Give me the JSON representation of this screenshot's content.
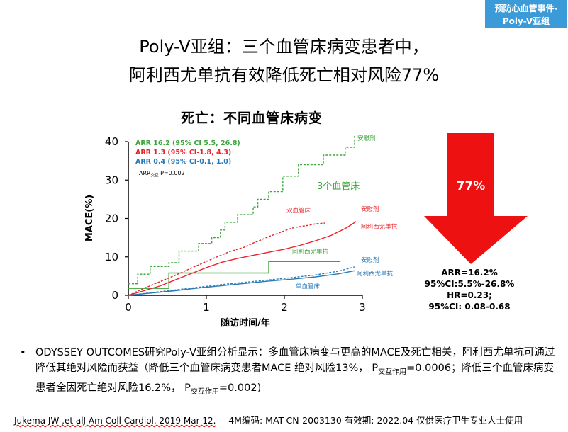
{
  "tag": {
    "line1": "预防心血管事件-",
    "line2": "Poly-V亚组"
  },
  "title": {
    "line1": "Poly-V亚组：三个血管床病变患者中，",
    "line2": "阿利西尤单抗有效降低死亡相对风险77%"
  },
  "chart_data": {
    "type": "line",
    "title": "死亡：不同血管床病变",
    "xlabel": "随访时间/年",
    "ylabel": "MACE(%)",
    "xlim": [
      0,
      3
    ],
    "ylim": [
      0,
      40
    ],
    "x_ticks": [
      "0",
      "1",
      "2",
      "3"
    ],
    "y_ticks": [
      "0",
      "10",
      "20",
      "30",
      "40"
    ],
    "legend": [
      {
        "text": "ARR 16.2 (95% CI 5.5, 26.8)",
        "color": "#3aa53a"
      },
      {
        "text": "ARR 1.3 (95% CI-1.8, 4.3)",
        "color": "#e8242a"
      },
      {
        "text": "ARR 0.4 (95% CI-0.1, 1.0)",
        "color": "#2a7ab8"
      }
    ],
    "interaction_note": {
      "prefix": "ARR",
      "sub": "交互",
      "suffix": " P=0.002"
    },
    "series": [
      {
        "name": "安慰剂",
        "group": "3个血管床",
        "color": "#3aa53a",
        "dash": true,
        "x": [
          0,
          0.12,
          0.12,
          0.28,
          0.28,
          0.52,
          0.52,
          0.65,
          0.65,
          0.9,
          0.9,
          1.07,
          1.07,
          1.18,
          1.18,
          1.24,
          1.24,
          1.4,
          1.4,
          1.6,
          1.6,
          1.66,
          1.66,
          1.8,
          1.8,
          1.98,
          1.98,
          2.18,
          2.18,
          2.5,
          2.5,
          2.78,
          2.78,
          2.9,
          2.9
        ],
        "y": [
          3,
          3,
          5.5,
          5.5,
          7.5,
          7.5,
          8.5,
          8.5,
          11.5,
          11.5,
          13.5,
          13.5,
          15,
          15,
          17,
          17,
          19,
          19,
          21,
          21,
          23,
          23,
          25,
          25,
          27,
          27,
          31,
          31,
          34,
          34,
          36.5,
          36.5,
          38.5,
          38.5,
          41.5
        ]
      },
      {
        "name": "阿利西尤单抗",
        "group": "3个血管床",
        "color": "#3aa53a",
        "dash": false,
        "x": [
          0,
          0.52,
          0.52,
          1.8,
          1.8,
          2.72
        ],
        "y": [
          1.8,
          1.8,
          5.8,
          5.8,
          8.8,
          8.8
        ]
      },
      {
        "name": "安慰剂",
        "group": "双血管床",
        "color": "#e8242a",
        "dash": true,
        "x": [
          0,
          0.2,
          0.4,
          0.6,
          0.8,
          1.0,
          1.1,
          1.2,
          1.3,
          1.4,
          1.5,
          1.6,
          1.7,
          1.8,
          1.9,
          2.0,
          2.1,
          2.2,
          2.3,
          2.4,
          2.52
        ],
        "y": [
          0,
          1.8,
          3.5,
          5.2,
          7.0,
          8.8,
          9.7,
          10.5,
          11.4,
          12.0,
          12.6,
          13.6,
          14.4,
          15.3,
          16.0,
          16.8,
          17.5,
          17.9,
          18.2,
          18.6,
          18.8
        ]
      },
      {
        "name": "阿利西尤单抗",
        "group": "双血管床",
        "color": "#e8242a",
        "dash": false,
        "x": [
          0,
          0.2,
          0.4,
          0.6,
          0.8,
          1.0,
          1.2,
          1.4,
          1.6,
          1.8,
          2.0,
          2.2,
          2.4,
          2.6,
          2.8,
          2.92
        ],
        "y": [
          0,
          1.2,
          2.4,
          4.0,
          5.6,
          7.2,
          8.6,
          9.6,
          10.4,
          11.2,
          12.0,
          13.0,
          14.2,
          15.6,
          17.6,
          19.2
        ]
      },
      {
        "name": "安慰剂",
        "group": "单血管床",
        "color": "#2a7ab8",
        "dash": true,
        "x": [
          0,
          0.3,
          0.6,
          0.9,
          1.2,
          1.5,
          1.8,
          2.1,
          2.4,
          2.7,
          2.9
        ],
        "y": [
          0,
          0.7,
          1.4,
          2.1,
          2.8,
          3.4,
          4.0,
          4.6,
          5.3,
          6.3,
          7.4
        ]
      },
      {
        "name": "阿利西尤单抗",
        "group": "单血管床",
        "color": "#2a7ab8",
        "dash": false,
        "x": [
          0,
          0.3,
          0.6,
          0.9,
          1.2,
          1.5,
          1.8,
          2.1,
          2.4,
          2.7,
          2.9
        ],
        "y": [
          0,
          0.6,
          1.2,
          1.9,
          2.5,
          3.1,
          3.7,
          4.2,
          4.8,
          5.6,
          6.4
        ]
      }
    ],
    "annotations": [
      {
        "text": "安慰剂",
        "color": "#3aa53a"
      },
      {
        "text": "3个血管床",
        "color": "#3aa53a"
      },
      {
        "text": "双血管床",
        "color": "#e8242a"
      },
      {
        "text": "安慰剂",
        "color": "#e8242a"
      },
      {
        "text": "阿利西尤单抗",
        "color": "#e8242a"
      },
      {
        "text": "阿利西尤单抗",
        "color": "#3aa53a"
      },
      {
        "text": "安慰剂",
        "color": "#2a7ab8"
      },
      {
        "text": "阿利西尤单抗",
        "color": "#2a7ab8"
      },
      {
        "text": "单血管床",
        "color": "#2a7ab8"
      }
    ]
  },
  "arrow": {
    "label": "77%",
    "color": "#ee1111"
  },
  "stats": [
    "ARR=16.2%",
    "95%CI:5.5%-26.8%",
    "HR=0.23;",
    "95%CI: 0.08-0.68"
  ],
  "bullet": {
    "marker": "•",
    "part1": "ODYSSEY OUTCOMES研究Poly-V亚组分析显示：多血管床病变与更高的MACE及死亡相关，阿利西尤单抗可通过降低其绝对风险而获益（降低三个血管床病变患者MACE 绝对风险13%，",
    "p1_label": "P",
    "p1_sub": "交互作用",
    "p1_value": "=0.0006；降低三个血管床病变患者全因死亡绝对风险16.2%，",
    "p2_label": "P",
    "p2_sub": "交互作用",
    "p2_value": "=0.002)"
  },
  "footer": {
    "citation": "Jukema JW ,et alJ Am Coll Cardiol. 2019 Mar 12.",
    "meta": "4M编码:    MAT-CN-2003130   有效期:  2022.04   仅供医疗卫生专业人士使用"
  }
}
